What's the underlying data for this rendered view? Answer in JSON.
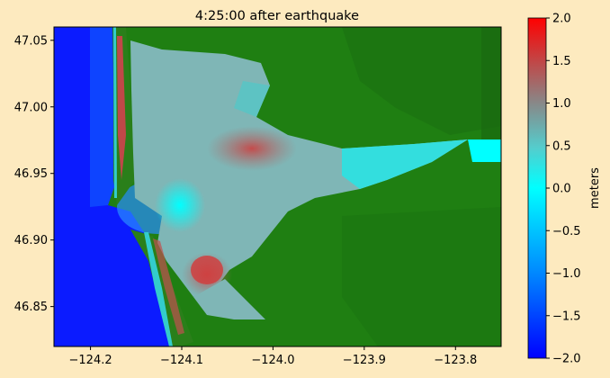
{
  "title": "4:25:00 after earthquake",
  "map": {
    "x_ticks": [
      "−124.2",
      "−124.1",
      "−124.0",
      "−123.9",
      "−123.8"
    ],
    "x_tick_values": [
      -124.2,
      -124.1,
      -124.0,
      -123.9,
      -123.8
    ],
    "y_ticks": [
      "47.05",
      "47.00",
      "46.95",
      "46.90",
      "46.85"
    ],
    "y_tick_values": [
      47.05,
      47.0,
      46.95,
      46.9,
      46.85
    ],
    "x_range": [
      -124.24,
      -123.75
    ],
    "y_range": [
      46.82,
      47.06
    ]
  },
  "colorbar": {
    "label": "meters",
    "ticks": [
      "2.0",
      "1.5",
      "1.0",
      "0.5",
      "0.0",
      "−0.5",
      "−1.0",
      "−1.5",
      "−2.0"
    ],
    "tick_values": [
      2.0,
      1.5,
      1.0,
      0.5,
      0.0,
      -0.5,
      -1.0,
      -1.5,
      -2.0
    ],
    "range": [
      -2.0,
      2.0
    ],
    "colors": {
      "low": "#0000ff",
      "mid_low": "#00ffff",
      "mid_high": "#888888",
      "high": "#ff0000"
    }
  },
  "colors": {
    "ocean": "#0b1bff",
    "land": "#1f7f12",
    "background": "#fdeabf"
  }
}
